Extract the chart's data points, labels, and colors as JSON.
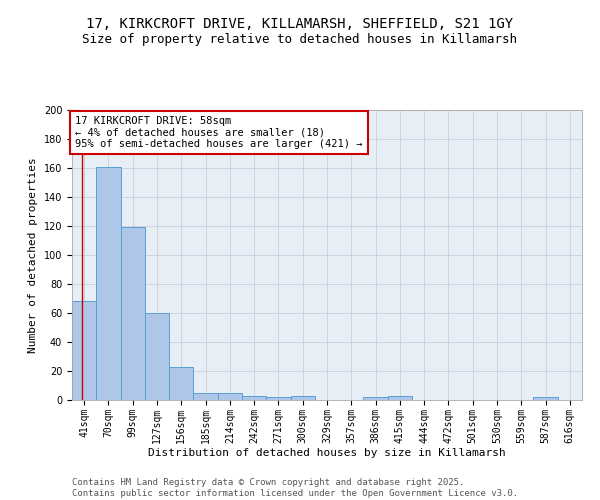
{
  "title_line1": "17, KIRKCROFT DRIVE, KILLAMARSH, SHEFFIELD, S21 1GY",
  "title_line2": "Size of property relative to detached houses in Killamarsh",
  "xlabel": "Distribution of detached houses by size in Killamarsh",
  "ylabel": "Number of detached properties",
  "categories": [
    "41sqm",
    "70sqm",
    "99sqm",
    "127sqm",
    "156sqm",
    "185sqm",
    "214sqm",
    "242sqm",
    "271sqm",
    "300sqm",
    "329sqm",
    "357sqm",
    "386sqm",
    "415sqm",
    "444sqm",
    "472sqm",
    "501sqm",
    "530sqm",
    "559sqm",
    "587sqm",
    "616sqm"
  ],
  "values": [
    68,
    161,
    119,
    60,
    23,
    5,
    5,
    3,
    2,
    3,
    0,
    0,
    2,
    3,
    0,
    0,
    0,
    0,
    0,
    2,
    0
  ],
  "bar_color": "#aec6e8",
  "bar_edge_color": "#5a9fd4",
  "annotation_text_line1": "17 KIRKCROFT DRIVE: 58sqm",
  "annotation_text_line2": "← 4% of detached houses are smaller (18)",
  "annotation_text_line3": "95% of semi-detached houses are larger (421) →",
  "annotation_box_color": "#ffffff",
  "annotation_box_edge_color": "#cc0000",
  "vline_color": "#cc0000",
  "vline_x": -0.08,
  "ylim": [
    0,
    200
  ],
  "yticks": [
    0,
    20,
    40,
    60,
    80,
    100,
    120,
    140,
    160,
    180,
    200
  ],
  "grid_color": "#c8d0dc",
  "bg_color": "#e8eef5",
  "footer_line1": "Contains HM Land Registry data © Crown copyright and database right 2025.",
  "footer_line2": "Contains public sector information licensed under the Open Government Licence v3.0.",
  "title_fontsize": 10,
  "subtitle_fontsize": 9,
  "axis_label_fontsize": 8,
  "tick_fontsize": 7,
  "annotation_fontsize": 7.5,
  "footer_fontsize": 6.5
}
